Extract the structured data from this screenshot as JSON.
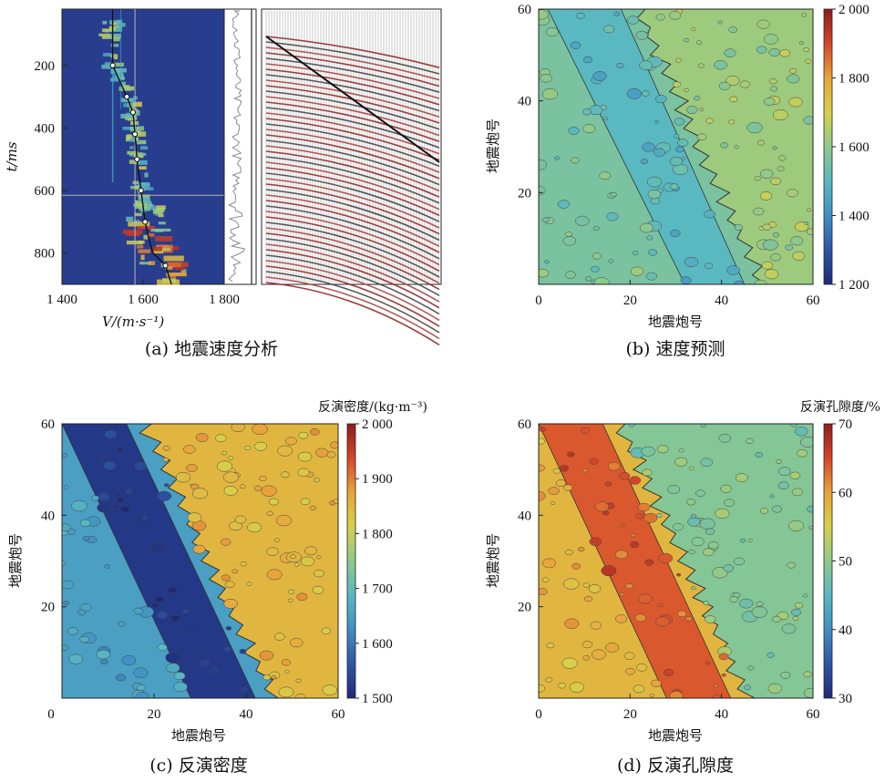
{
  "colormap": [
    "#1e2a78",
    "#2f55a6",
    "#3f8fc4",
    "#5ab8c0",
    "#8fc98a",
    "#d7d04a",
    "#e8a43a",
    "#d6452b",
    "#8b1d1d"
  ],
  "chart_data": [
    {
      "id": "a",
      "type": "heatmap",
      "caption": "(a) 地震速度分析",
      "xlabel": "V/(m·s⁻¹)",
      "ylabel": "t/ms",
      "xlim": [
        1400,
        1800
      ],
      "ylim": [
        900,
        20
      ],
      "x_ticks": [
        "1 400",
        "1 600",
        "1 800"
      ],
      "x_tick_values": [
        1400,
        1600,
        1800
      ],
      "y_ticks": [
        "200",
        "400",
        "600",
        "800"
      ],
      "y_tick_values": [
        200,
        400,
        600,
        800
      ],
      "picked_velocity": {
        "t": [
          20,
          200,
          300,
          350,
          420,
          500,
          600,
          700,
          760,
          800,
          840,
          900
        ],
        "v": [
          1525,
          1525,
          1560,
          1575,
          1580,
          1585,
          1595,
          1605,
          1615,
          1625,
          1655,
          1670
        ]
      },
      "picked_points": {
        "t": [
          200,
          300,
          350,
          420,
          500,
          600,
          700,
          840
        ],
        "v": [
          1525,
          1560,
          1575,
          1580,
          1585,
          1595,
          1605,
          1655
        ]
      },
      "crosshair": {
        "v": 1580,
        "t": 615
      },
      "panels": [
        "velocity-spectrum",
        "trace",
        "gather"
      ]
    },
    {
      "id": "b",
      "type": "heatmap",
      "caption": "(b) 速度预测",
      "xlabel": "地震炮号",
      "ylabel": "地震炮号",
      "xlim": [
        0,
        60
      ],
      "ylim": [
        0,
        60
      ],
      "x_ticks": [
        "0",
        "20",
        "40",
        "60"
      ],
      "x_tick_values": [
        0,
        20,
        40,
        60
      ],
      "y_ticks": [
        "20",
        "40",
        "60"
      ],
      "y_tick_values": [
        20,
        40,
        60
      ],
      "colorbar": {
        "label": "",
        "min": 1200,
        "max": 2000,
        "ticks": [
          "2 000",
          "1 800",
          "1 600",
          "1 400",
          "1 200"
        ]
      },
      "zones": [
        {
          "name": "left",
          "value": 1560
        },
        {
          "name": "band",
          "value": 1500
        },
        {
          "name": "right",
          "value": 1620
        }
      ]
    },
    {
      "id": "c",
      "type": "heatmap",
      "caption": "(c) 反演密度",
      "xlabel": "地震炮号",
      "ylabel": "地震炮号",
      "xlim": [
        0,
        60
      ],
      "ylim": [
        0,
        60
      ],
      "x_ticks": [
        "0",
        "20",
        "40",
        "60"
      ],
      "x_tick_values": [
        0,
        20,
        40,
        60
      ],
      "y_ticks": [
        "20",
        "40",
        "60"
      ],
      "y_tick_values": [
        20,
        40,
        60
      ],
      "colorbar": {
        "label": "反演密度/(kg·m⁻³)",
        "min": 1500,
        "max": 2000,
        "ticks": [
          "2 000",
          "1 900",
          "1 800",
          "1 700",
          "1 600",
          "1 500"
        ]
      },
      "zones": [
        {
          "name": "left",
          "value": 1650
        },
        {
          "name": "band",
          "value": 1520
        },
        {
          "name": "right",
          "value": 1850
        }
      ]
    },
    {
      "id": "d",
      "type": "heatmap",
      "caption": "(d) 反演孔隙度",
      "xlabel": "地震炮号",
      "ylabel": "地震炮号",
      "xlim": [
        0,
        60
      ],
      "ylim": [
        0,
        60
      ],
      "x_ticks": [
        "0",
        "20",
        "40",
        "60"
      ],
      "x_tick_values": [
        0,
        20,
        40,
        60
      ],
      "y_ticks": [
        "20",
        "40",
        "60"
      ],
      "y_tick_values": [
        20,
        40,
        60
      ],
      "colorbar": {
        "label": "反演孔隙度/%",
        "min": 30,
        "max": 70,
        "ticks": [
          "70",
          "60",
          "50",
          "40",
          "30"
        ]
      },
      "zones": [
        {
          "name": "left",
          "value": 58
        },
        {
          "name": "band",
          "value": 64
        },
        {
          "name": "right",
          "value": 49
        }
      ]
    }
  ]
}
